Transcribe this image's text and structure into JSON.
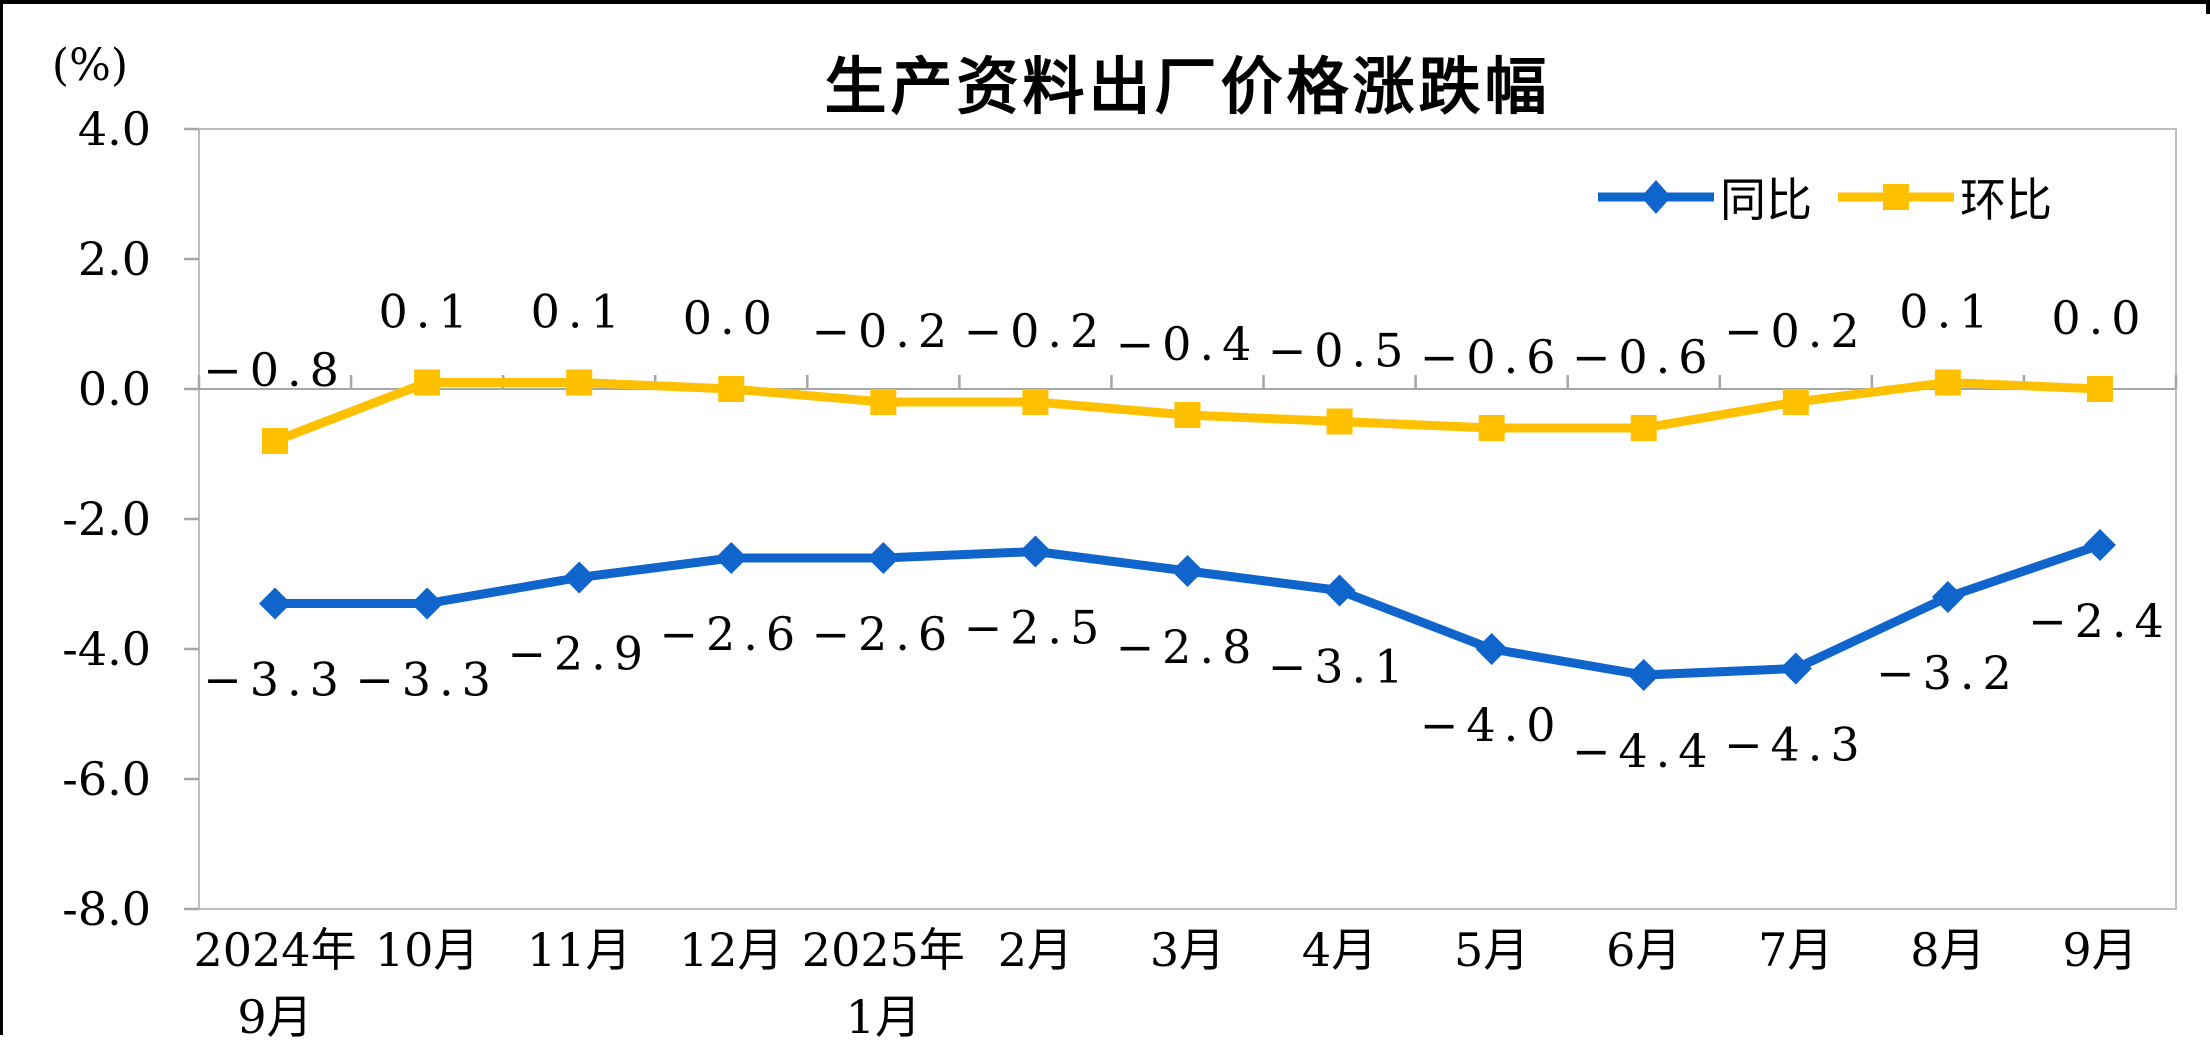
{
  "chart_data": {
    "type": "line",
    "title": "生产资料出厂价格涨跌幅",
    "unit_label": "(%)",
    "categories": [
      [
        "2024年",
        "9月"
      ],
      [
        "10月"
      ],
      [
        "11月"
      ],
      [
        "12月"
      ],
      [
        "2025年",
        "1月"
      ],
      [
        "2月"
      ],
      [
        "3月"
      ],
      [
        "4月"
      ],
      [
        "5月"
      ],
      [
        "6月"
      ],
      [
        "7月"
      ],
      [
        "8月"
      ],
      [
        "9月"
      ]
    ],
    "ylim": [
      -8,
      4
    ],
    "yticks": [
      "4.0",
      "2.0",
      "0.0",
      "-2.0",
      "-4.0",
      "-6.0",
      "-8.0"
    ],
    "grid": false,
    "legend_position": "top-right",
    "series": [
      {
        "name": "同比",
        "type": "line",
        "marker": "diamond",
        "color": "#1065CC",
        "label_position": "below",
        "values": [
          -3.3,
          -3.3,
          -2.9,
          -2.6,
          -2.6,
          -2.5,
          -2.8,
          -3.1,
          -4.0,
          -4.4,
          -4.3,
          -3.2,
          -2.4
        ],
        "labels": [
          "-3.3",
          "-3.3",
          "-2.9",
          "-2.6",
          "-2.6",
          "-2.5",
          "-2.8",
          "-3.1",
          "-4.0",
          "-4.4",
          "-4.3",
          "-3.2",
          "-2.4"
        ]
      },
      {
        "name": "环比",
        "type": "line",
        "marker": "square",
        "color": "#FFC000",
        "label_position": "above",
        "values": [
          -0.8,
          0.1,
          0.1,
          0.0,
          -0.2,
          -0.2,
          -0.4,
          -0.5,
          -0.6,
          -0.6,
          -0.2,
          0.1,
          0.0
        ],
        "labels": [
          "-0.8",
          "0.1",
          "0.1",
          "0.0",
          "-0.2",
          "-0.2",
          "-0.4",
          "-0.5",
          "-0.6",
          "-0.6",
          "-0.2",
          "0.1",
          "0.0"
        ]
      }
    ],
    "colors": {
      "axis": "#A6A6A6",
      "plot_border": "#BFBFBF",
      "text": "#000000"
    }
  }
}
